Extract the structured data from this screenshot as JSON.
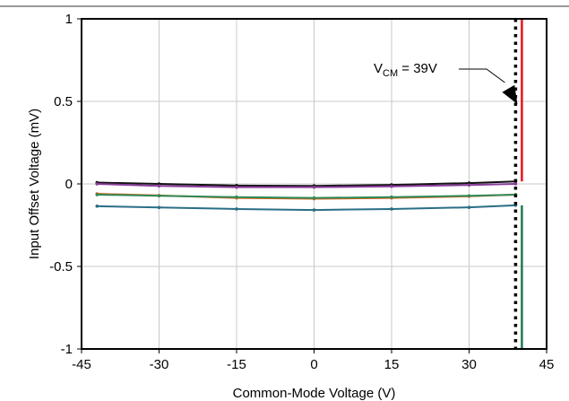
{
  "chart_data": {
    "type": "line",
    "xlabel": "Common-Mode Voltage (V)",
    "ylabel": "Input Offset Voltage (mV)",
    "xlim": [
      -45,
      45
    ],
    "ylim": [
      -1,
      1
    ],
    "xticks": [
      -45,
      -30,
      -15,
      0,
      15,
      30,
      45
    ],
    "yticks": [
      1,
      0.5,
      0,
      -0.5,
      -1
    ],
    "xtick_labels": [
      "-45",
      "-30",
      "-15",
      "0",
      "15",
      "30",
      "45"
    ],
    "ytick_labels": [
      "1",
      "0.5",
      "0",
      "-0.5",
      "-1"
    ],
    "grid": true,
    "legend": "none",
    "colors": {
      "grid": "#c8c8c8",
      "frame": "#000000",
      "vcm_line": "#000000",
      "limit_line_red": "#e8141e",
      "limit_line_green": "#1f7a50"
    },
    "annotation": {
      "v_prefix": "V",
      "v_subscript": "CM",
      "v_suffix": " = 39V",
      "x": 39
    },
    "series": [
      {
        "color": "#111111",
        "x": [
          -42,
          -30,
          -15,
          0,
          15,
          30,
          39
        ],
        "values": [
          0.008,
          0.0,
          -0.01,
          -0.012,
          -0.006,
          0.005,
          0.015
        ]
      },
      {
        "color": "#8a3c9a",
        "x": [
          -42,
          -30,
          -15,
          0,
          15,
          30,
          39
        ],
        "values": [
          0.0,
          -0.012,
          -0.02,
          -0.02,
          -0.015,
          -0.007,
          0.0
        ]
      },
      {
        "color": "#e0601c",
        "x": [
          -42,
          -30,
          -15,
          0,
          15,
          30,
          39
        ],
        "values": [
          -0.06,
          -0.07,
          -0.085,
          -0.09,
          -0.085,
          -0.075,
          -0.065
        ]
      },
      {
        "color": "#2e8b57",
        "x": [
          -42,
          -30,
          -15,
          0,
          15,
          30,
          39
        ],
        "values": [
          -0.065,
          -0.072,
          -0.08,
          -0.085,
          -0.08,
          -0.072,
          -0.065
        ]
      },
      {
        "color": "#2a6e86",
        "x": [
          -42,
          -30,
          -15,
          0,
          15,
          30,
          39
        ],
        "values": [
          -0.135,
          -0.143,
          -0.152,
          -0.158,
          -0.152,
          -0.142,
          -0.13
        ]
      }
    ]
  }
}
